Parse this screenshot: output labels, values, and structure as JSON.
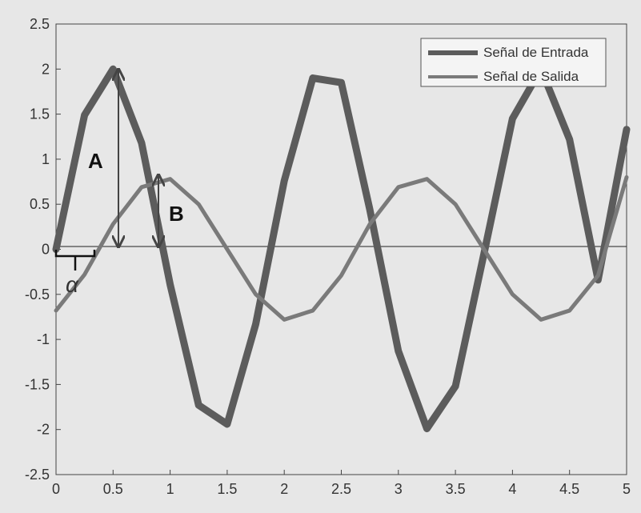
{
  "chart_data": {
    "type": "line",
    "xlim": [
      0,
      5
    ],
    "ylim": [
      -2.5,
      2.5
    ],
    "xticks": [
      0,
      0.5,
      1,
      1.5,
      2,
      2.5,
      3,
      3.5,
      4,
      4.5,
      5
    ],
    "yticks": [
      2.5,
      2,
      1.5,
      1,
      0.5,
      0,
      -0.5,
      -1,
      -1.5,
      -2,
      -2.5
    ],
    "xtick_labels": [
      "0",
      "0.5",
      "1",
      "1.5",
      "2",
      "2.5",
      "3",
      "3.5",
      "4",
      "4.5",
      "5"
    ],
    "ytick_labels": [
      "2.5",
      "2",
      "1.5",
      "1",
      "0.5",
      "0",
      "-0.5",
      "-1",
      "-1.5",
      "-2",
      "-2.5"
    ],
    "grid": false,
    "legend_position": "top-right",
    "zero_line": true,
    "series": [
      {
        "name": "Señal de Entrada",
        "color": "#5c5c5c",
        "x": [
          0,
          0.25,
          0.5,
          0.75,
          1.0,
          1.25,
          1.5,
          1.75,
          2.0,
          2.25,
          2.5,
          2.75,
          3.0,
          3.25,
          3.5,
          3.75,
          4.0,
          4.25,
          4.5,
          4.75,
          5.0
        ],
        "y": [
          0,
          1.49,
          2.0,
          1.18,
          -0.39,
          -1.73,
          -1.94,
          -0.83,
          0.76,
          1.9,
          1.85,
          0.44,
          -1.13,
          -1.99,
          -1.52,
          -0.05,
          1.45,
          2.0,
          1.22,
          -0.34,
          1.33
        ]
      },
      {
        "name": "Señal de Salida",
        "color": "#7a7a7a",
        "x": [
          0,
          0.25,
          0.5,
          0.75,
          1.0,
          1.25,
          1.5,
          1.75,
          2.0,
          2.25,
          2.5,
          2.75,
          3.0,
          3.25,
          3.5,
          3.75,
          4.0,
          4.25,
          4.5,
          4.75,
          5.0
        ],
        "y": [
          -0.68,
          -0.28,
          0.28,
          0.69,
          0.78,
          0.5,
          0.0,
          -0.5,
          -0.78,
          -0.68,
          -0.29,
          0.28,
          0.69,
          0.78,
          0.5,
          0.0,
          -0.5,
          -0.78,
          -0.68,
          -0.29,
          0.8
        ]
      }
    ],
    "annotations": {
      "A": "A",
      "B": "B",
      "alpha": "α"
    }
  }
}
